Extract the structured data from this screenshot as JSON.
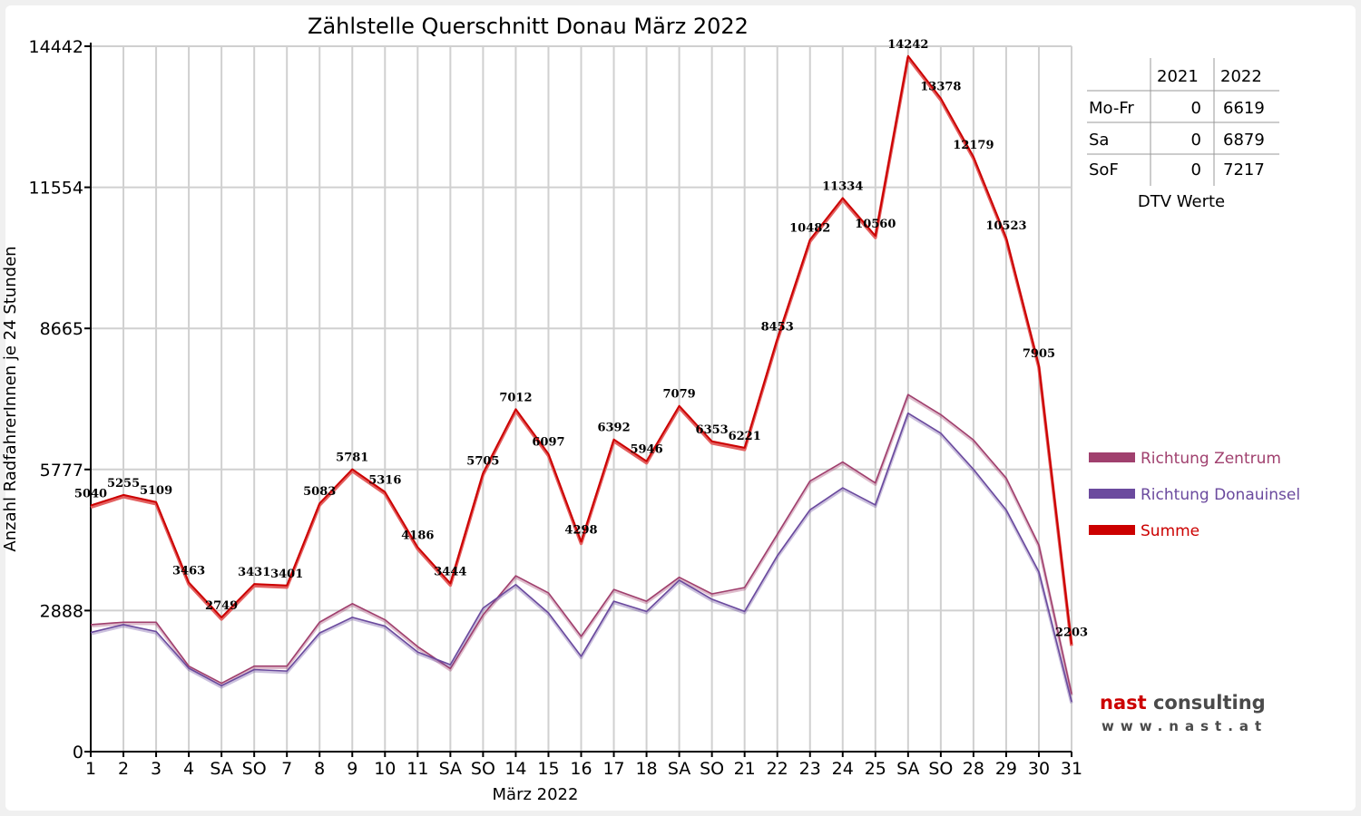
{
  "chart_data": {
    "type": "line",
    "title": "Zählstelle Querschnitt Donau März 2022",
    "xlabel": "März 2022",
    "ylabel": "Anzahl RadfahrerInnen je 24 Stunden",
    "ylim": [
      0,
      14442
    ],
    "y_ticks": [
      "0",
      "2888",
      "5777",
      "8665",
      "11554",
      "14442"
    ],
    "grid": true,
    "legend_position": "right",
    "categories": [
      "1",
      "2",
      "3",
      "4",
      "SA",
      "SO",
      "7",
      "8",
      "9",
      "10",
      "11",
      "SA",
      "SO",
      "14",
      "15",
      "16",
      "17",
      "18",
      "SA",
      "SO",
      "21",
      "22",
      "23",
      "24",
      "25",
      "SA",
      "SO",
      "28",
      "29",
      "30",
      "31"
    ],
    "weekend_marked_red": [
      "SO"
    ],
    "series": [
      {
        "name": "Richtung Zentrum",
        "color": "#a0406e",
        "values": [
          2600,
          2650,
          2650,
          1750,
          1400,
          1750,
          1750,
          2650,
          3030,
          2700,
          2150,
          1700,
          2800,
          3600,
          3250,
          2360,
          3320,
          3080,
          3570,
          3230,
          3360,
          4450,
          5540,
          5930,
          5500,
          7310,
          6900,
          6380,
          5600,
          4230,
          1180
        ]
      },
      {
        "name": "Richtung Donauinsel",
        "color": "#6b4a9e",
        "values": [
          2440,
          2600,
          2460,
          1710,
          1350,
          1680,
          1650,
          2430,
          2750,
          2570,
          2040,
          1780,
          2940,
          3420,
          2840,
          1950,
          3080,
          2870,
          3510,
          3120,
          2870,
          4010,
          4950,
          5400,
          5050,
          6930,
          6520,
          5780,
          4950,
          3680,
          1020
        ]
      },
      {
        "name": "Summe",
        "color": "#cc0000",
        "values": [
          5040,
          5255,
          5109,
          3463,
          2749,
          3431,
          3401,
          5083,
          5781,
          5316,
          4186,
          3444,
          5705,
          7012,
          6097,
          4298,
          6392,
          5946,
          7079,
          6353,
          6221,
          8453,
          10482,
          11334,
          10560,
          14242,
          13378,
          12179,
          10523,
          7905,
          2203
        ],
        "data_labels": [
          "5040",
          "5255",
          "5109",
          "3463",
          "2749",
          "3431",
          "3401",
          "5083",
          "5781",
          "5316",
          "4186",
          "3444",
          "5705",
          "7012",
          "6097",
          "4298",
          "6392",
          "5946",
          "7079",
          "6353",
          "6221",
          "8453",
          "10482",
          "11334",
          "10560",
          "14242",
          "13378",
          "12179",
          "10523",
          "7905",
          "2203"
        ]
      }
    ]
  },
  "dtv_table": {
    "headers": [
      "",
      "2021",
      "2022"
    ],
    "rows": [
      {
        "label": "Mo-Fr",
        "v2021": "0",
        "v2022": "6619"
      },
      {
        "label": "Sa",
        "v2021": "0",
        "v2022": "6879"
      },
      {
        "label": "SoF",
        "v2021": "0",
        "v2022": "7217"
      }
    ],
    "caption": "DTV Werte"
  },
  "logo": {
    "nast": "nast",
    "consulting": "consulting",
    "url": "www.nast.at"
  },
  "colors": {
    "summe": "#cc0000",
    "zentrum": "#a0406e",
    "donauinsel": "#6b4a9e",
    "sunday_label": "#ff0000",
    "grid": "#d0d0d0"
  }
}
